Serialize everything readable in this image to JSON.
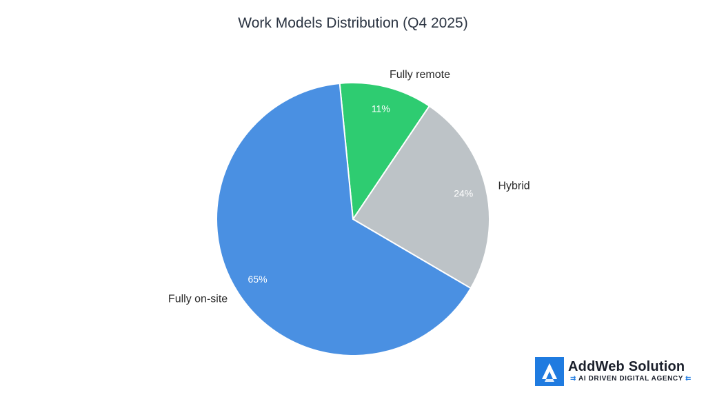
{
  "chart_data": {
    "type": "pie",
    "title": "Work Models Distribution (Q4 2025)",
    "slices": [
      {
        "label": "Fully remote",
        "value": 11,
        "pct_label": "11%",
        "color": "#2ecc71"
      },
      {
        "label": "Hybrid",
        "value": 24,
        "pct_label": "24%",
        "color": "#bdc3c7"
      },
      {
        "label": "Fully on-site",
        "value": 65,
        "pct_label": "65%",
        "color": "#4a90e2"
      }
    ],
    "start_angle_deg": -5.6,
    "direction": "clockwise",
    "legend": "none"
  },
  "logo": {
    "name": "AddWeb Solution",
    "tagline": "AI DRIVEN DIGITAL AGENCY",
    "brand_color": "#1f7be0",
    "icon": "addweb-logo-icon"
  }
}
